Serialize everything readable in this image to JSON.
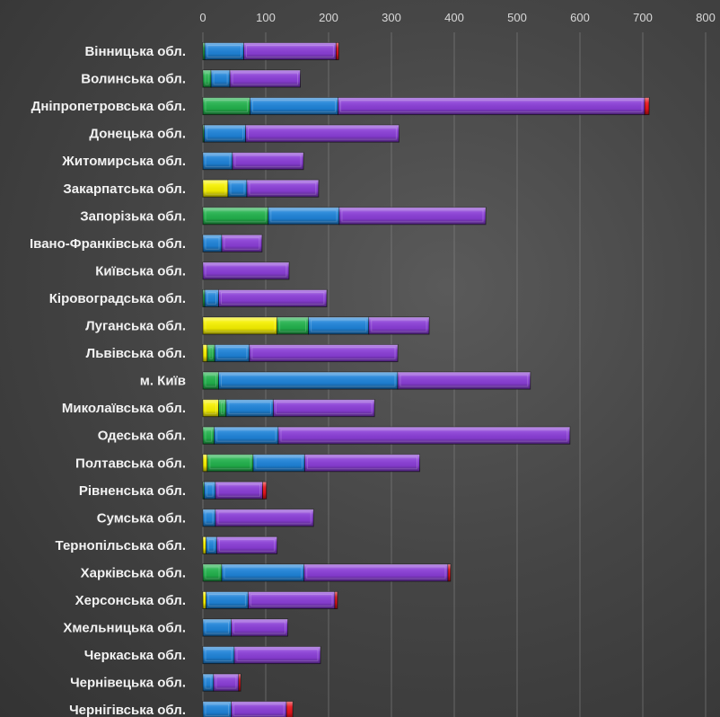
{
  "chart_data": {
    "type": "bar",
    "orientation": "horizontal",
    "stacked": true,
    "xlim": [
      0,
      800
    ],
    "x_ticks": [
      "0",
      "100",
      "200",
      "300",
      "400",
      "500",
      "600",
      "700",
      "800"
    ],
    "grid": true,
    "categories": [
      "Вінницька обл.",
      "Волинська обл.",
      "Дніпропетровська обл.",
      "Донецька обл.",
      "Житомирська обл.",
      "Закарпатська обл.",
      "Запорізька обл.",
      "Івано-Франківська обл.",
      "Київська обл.",
      "Кіровоградська обл.",
      "Луганська обл.",
      "Львівська обл.",
      "м. Київ",
      "Миколаївська обл.",
      "Одеська обл.",
      "Полтавська обл.",
      "Рівненська обл.",
      "Сумська обл.",
      "Тернопільська обл.",
      "Харківська обл.",
      "Херсонська обл.",
      "Хмельницька обл.",
      "Черкаська обл.",
      "Чернівецька обл.",
      "Чернігівська обл."
    ],
    "series": [
      {
        "color": "#f5f000",
        "values": [
          0,
          0,
          0,
          0,
          0,
          40,
          0,
          0,
          0,
          0,
          118,
          7,
          0,
          25,
          0,
          7,
          0,
          0,
          5,
          0,
          5,
          0,
          0,
          0,
          0
        ]
      },
      {
        "color": "#22b14c",
        "values": [
          3,
          13,
          75,
          2,
          0,
          0,
          104,
          0,
          0,
          3,
          50,
          12,
          25,
          12,
          18,
          73,
          2,
          0,
          0,
          30,
          0,
          0,
          0,
          0,
          0
        ]
      },
      {
        "color": "#1f83d8",
        "values": [
          62,
          30,
          140,
          66,
          47,
          30,
          113,
          30,
          0,
          22,
          96,
          55,
          285,
          75,
          102,
          82,
          18,
          20,
          17,
          131,
          67,
          45,
          50,
          17,
          45
        ]
      },
      {
        "color": "#8a3ed6",
        "values": [
          147,
          112,
          488,
          244,
          113,
          114,
          233,
          64,
          137,
          172,
          96,
          236,
          211,
          161,
          464,
          183,
          75,
          156,
          96,
          229,
          138,
          90,
          137,
          40,
          88
        ]
      },
      {
        "color": "#e8141c",
        "values": [
          4,
          0,
          7,
          0,
          0,
          0,
          0,
          0,
          0,
          0,
          0,
          0,
          0,
          0,
          0,
          0,
          6,
          0,
          0,
          4,
          4,
          0,
          0,
          3,
          10
        ]
      }
    ]
  }
}
